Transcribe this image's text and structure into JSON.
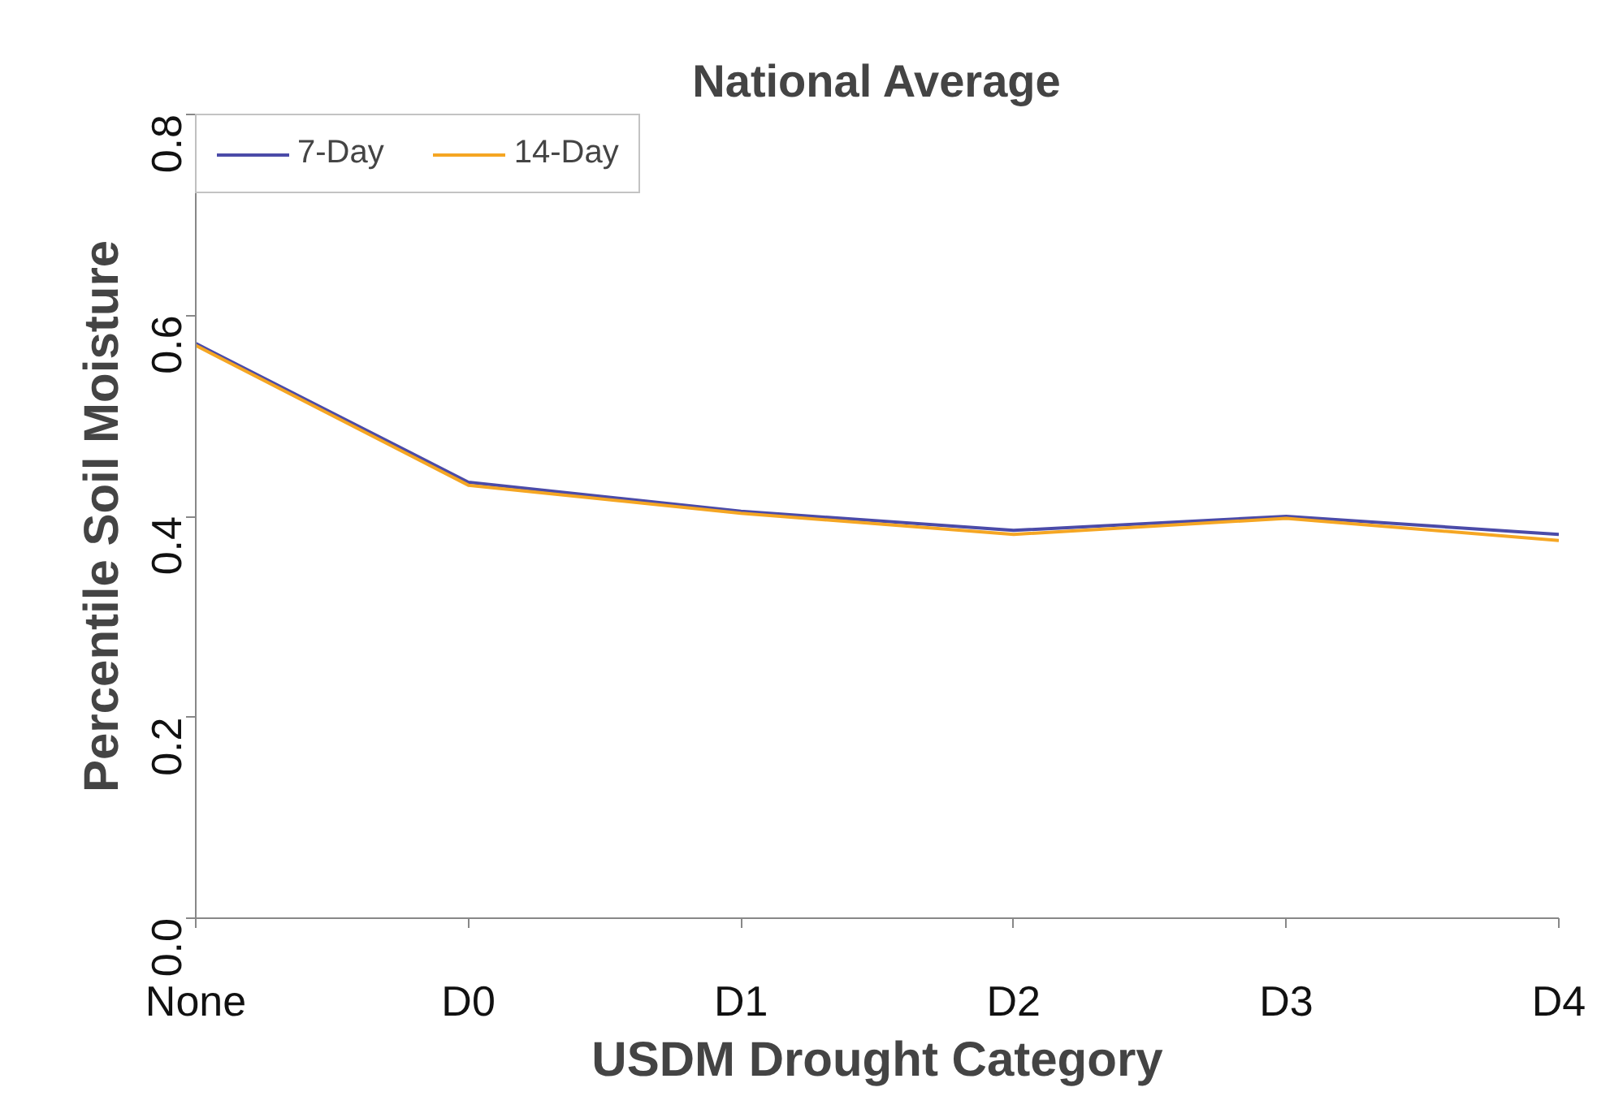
{
  "chart_data": {
    "type": "line",
    "title": "National Average",
    "xlabel": "USDM Drought Category",
    "ylabel": "Percentile Soil Moisture",
    "categories": [
      "None",
      "D0",
      "D1",
      "D2",
      "D3",
      "D4"
    ],
    "series": [
      {
        "name": "7-Day",
        "color": "#4b4ba8",
        "values": [
          0.572,
          0.434,
          0.405,
          0.386,
          0.4,
          0.382
        ]
      },
      {
        "name": "14-Day",
        "color": "#f5a623",
        "values": [
          0.57,
          0.431,
          0.403,
          0.382,
          0.398,
          0.376
        ]
      }
    ],
    "ylim": [
      0,
      0.8
    ],
    "yticks": [
      {
        "value": 0,
        "label": "0.0"
      },
      {
        "value": 0.2,
        "label": "0.2"
      },
      {
        "value": 0.4,
        "label": "0.4"
      },
      {
        "value": 0.6,
        "label": "0.6"
      },
      {
        "value": 0.8,
        "label": "0.8"
      }
    ],
    "grid": false,
    "legend": "top left",
    "marker": "none",
    "line_style": "solid"
  }
}
